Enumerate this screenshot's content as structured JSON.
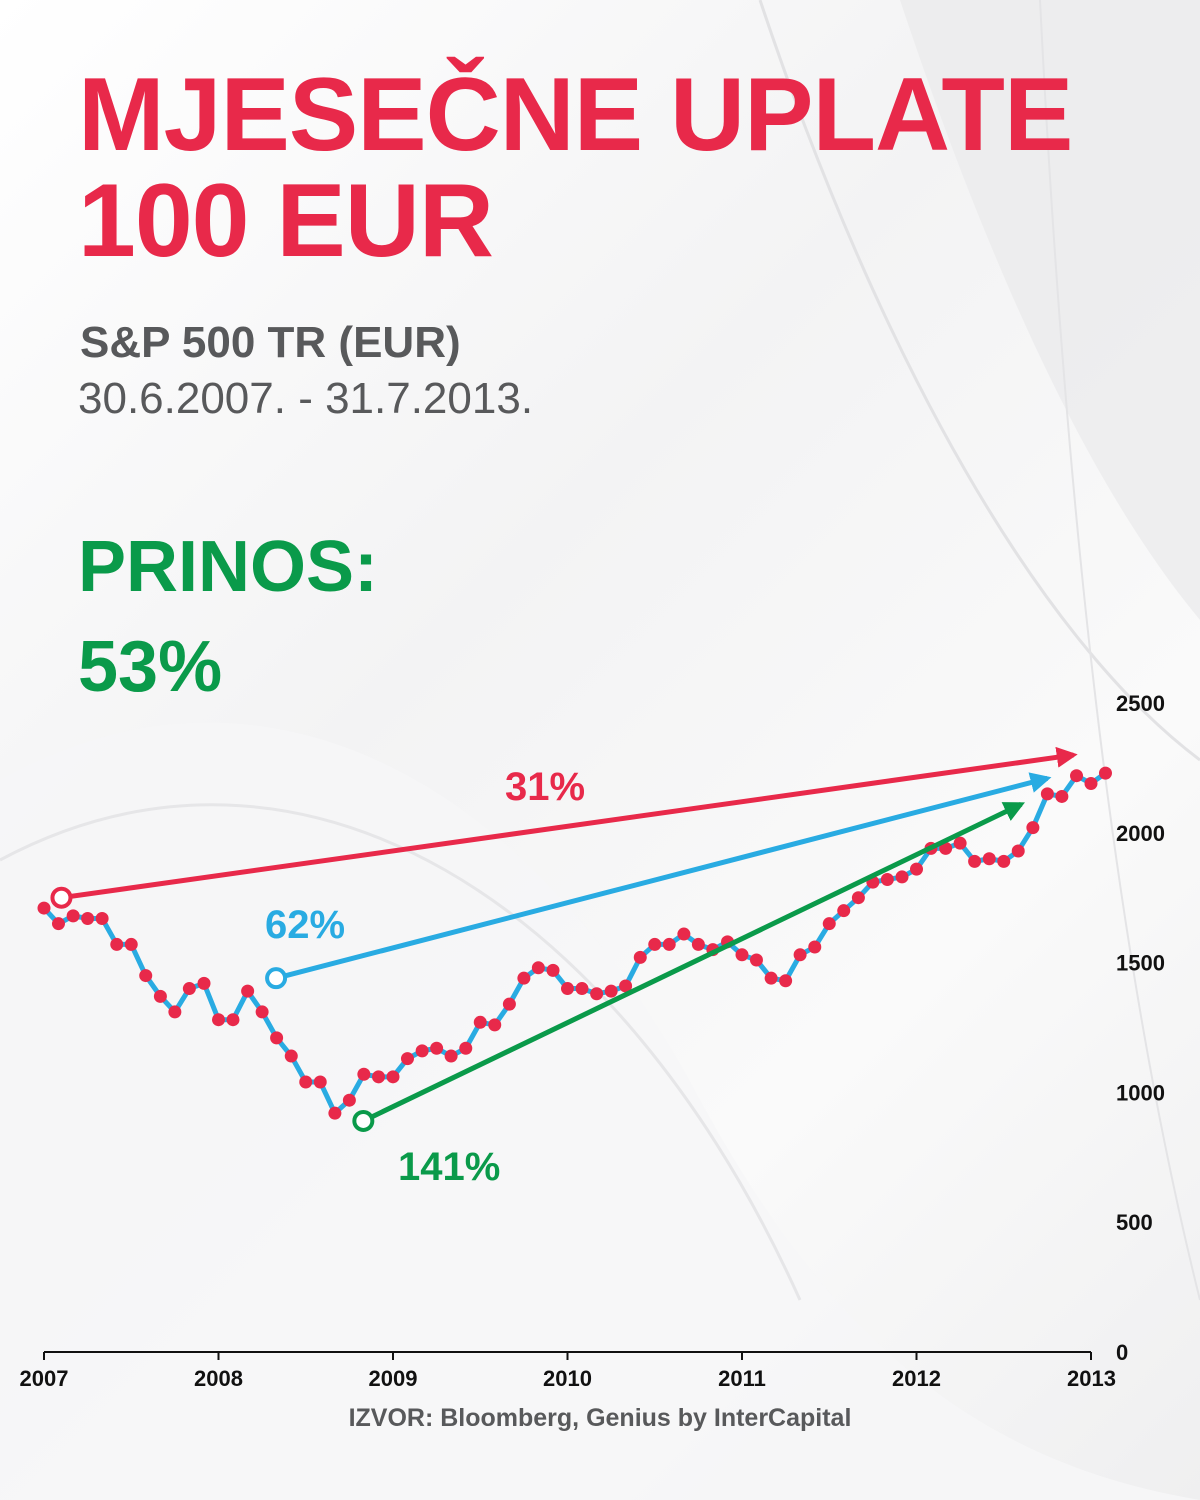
{
  "title_line1": "MJESEČNE UPLATE",
  "title_line2": "100 EUR",
  "subtitle": "S&P 500 TR (EUR)",
  "period": "30.6.2007. - 31.7.2013.",
  "return_label": "PRINOS:",
  "return_value": "53%",
  "source": "IZVOR: Bloomberg, Genius by InterCapital",
  "colors": {
    "title": "#e8294a",
    "text": "#58595b",
    "green": "#0a9a4a",
    "line": "#29abe2",
    "marker": "#e8294a"
  },
  "chart_data": {
    "type": "line",
    "x_ticks": [
      "2007",
      "2008",
      "2009",
      "2010",
      "2011",
      "2012",
      "2013"
    ],
    "y_ticks": [
      "0",
      "500",
      "1000",
      "1500",
      "2000",
      "2500"
    ],
    "x_range": [
      2007.0,
      2013.1
    ],
    "y_range": [
      0,
      2500
    ],
    "y_axis_position": "right",
    "grid": false,
    "series": [
      {
        "x": [
          2007.0,
          2007.083,
          2007.167,
          2007.25,
          2007.333,
          2007.417,
          2007.5,
          2007.583,
          2007.667,
          2007.75,
          2007.833,
          2007.917,
          2008.0,
          2008.083,
          2008.167,
          2008.25,
          2008.333,
          2008.417,
          2008.5,
          2008.583,
          2008.667,
          2008.75,
          2008.833,
          2008.917,
          2009.0,
          2009.083,
          2009.167,
          2009.25,
          2009.333,
          2009.417,
          2009.5,
          2009.583,
          2009.667,
          2009.75,
          2009.833,
          2009.917,
          2010.0,
          2010.083,
          2010.167,
          2010.25,
          2010.333,
          2010.417,
          2010.5,
          2010.583,
          2010.667,
          2010.75,
          2010.833,
          2010.917,
          2011.0,
          2011.083,
          2011.167,
          2011.25,
          2011.333,
          2011.417,
          2011.5,
          2011.583,
          2011.667,
          2011.75,
          2011.833,
          2011.917,
          2012.0,
          2012.083,
          2012.167,
          2012.25,
          2012.333,
          2012.417,
          2012.5,
          2012.583,
          2012.667,
          2012.75,
          2012.833,
          2012.917,
          2013.0,
          2013.083
        ],
        "values": [
          1710,
          1650,
          1680,
          1670,
          1670,
          1570,
          1570,
          1450,
          1370,
          1310,
          1400,
          1420,
          1280,
          1280,
          1390,
          1310,
          1210,
          1140,
          1040,
          1040,
          920,
          970,
          1070,
          1060,
          1060,
          1130,
          1160,
          1170,
          1140,
          1170,
          1270,
          1260,
          1340,
          1440,
          1480,
          1470,
          1400,
          1400,
          1380,
          1390,
          1410,
          1520,
          1570,
          1570,
          1610,
          1570,
          1550,
          1580,
          1530,
          1510,
          1440,
          1430,
          1530,
          1560,
          1650,
          1700,
          1750,
          1810,
          1820,
          1830,
          1860,
          1940,
          1940,
          1960,
          1890,
          1900,
          1890,
          1930,
          2020,
          2150,
          2140,
          2220,
          2190,
          2230
        ]
      }
    ],
    "annotations": [
      {
        "label": "31%",
        "from": [
          2007.1,
          1750
        ],
        "to": [
          2012.9,
          2300
        ],
        "color": "#e8294a"
      },
      {
        "label": "62%",
        "from": [
          2008.33,
          1440
        ],
        "to": [
          2012.75,
          2210
        ],
        "color": "#29abe2"
      },
      {
        "label": "141%",
        "from": [
          2008.83,
          890
        ],
        "to": [
          2012.6,
          2110
        ],
        "color": "#0a9a4a"
      }
    ]
  }
}
